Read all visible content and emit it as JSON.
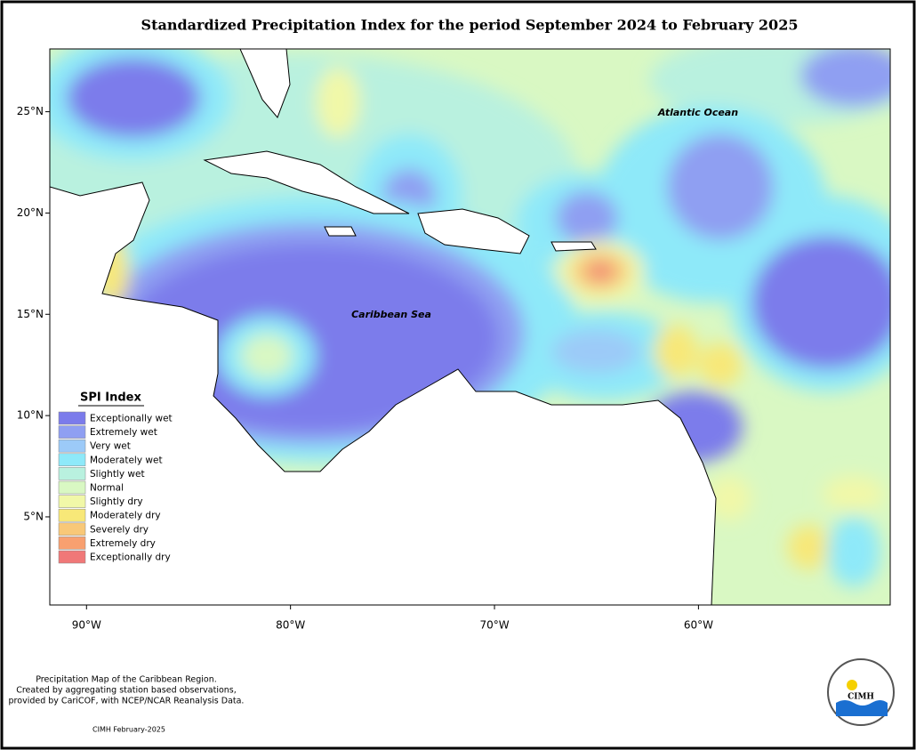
{
  "title": "Standardized Precipitation Index for the period September 2024 to February 2025",
  "map": {
    "xlim": [
      -91.8,
      -50.6
    ],
    "ylim": [
      0.65,
      28.1
    ],
    "xticks": [
      {
        "value": -90,
        "label": "90°W"
      },
      {
        "value": -80,
        "label": "80°W"
      },
      {
        "value": -70,
        "label": "70°W"
      },
      {
        "value": -60,
        "label": "60°W"
      }
    ],
    "yticks": [
      {
        "value": 25,
        "label": "25°N"
      },
      {
        "value": 20,
        "label": "20°N"
      },
      {
        "value": 15,
        "label": "15°N"
      },
      {
        "value": 10,
        "label": "10°N"
      },
      {
        "value": 5,
        "label": "5°N"
      }
    ],
    "labels": [
      "Atlantic Ocean",
      "Caribbean Sea"
    ]
  },
  "legend": {
    "title": "SPI Index",
    "items": [
      {
        "name": "Exceptionally wet",
        "color": "#7b7beb"
      },
      {
        "name": "Extremely wet",
        "color": "#8f9ff2"
      },
      {
        "name": "Very wet",
        "color": "#9ccaf8"
      },
      {
        "name": "Moderately wet",
        "color": "#8ee9f9"
      },
      {
        "name": "Slightly wet",
        "color": "#b9f1df"
      },
      {
        "name": "Normal",
        "color": "#d9f8c3"
      },
      {
        "name": "Slightly dry",
        "color": "#f1f8a8"
      },
      {
        "name": "Moderately dry",
        "color": "#f8e878"
      },
      {
        "name": "Severely dry",
        "color": "#f8c878"
      },
      {
        "name": "Extremely dry",
        "color": "#f8a070"
      },
      {
        "name": "Exceptionally dry",
        "color": "#f07878"
      }
    ]
  },
  "footer": {
    "lines": [
      "Precipitation Map of the Caribbean Region.",
      "Created by aggregating station based observations,",
      "provided by CariCOF, with NCEP/NCAR Reanalysis Data."
    ],
    "credit": "CIMH February-2025",
    "logo": "CIMH"
  }
}
